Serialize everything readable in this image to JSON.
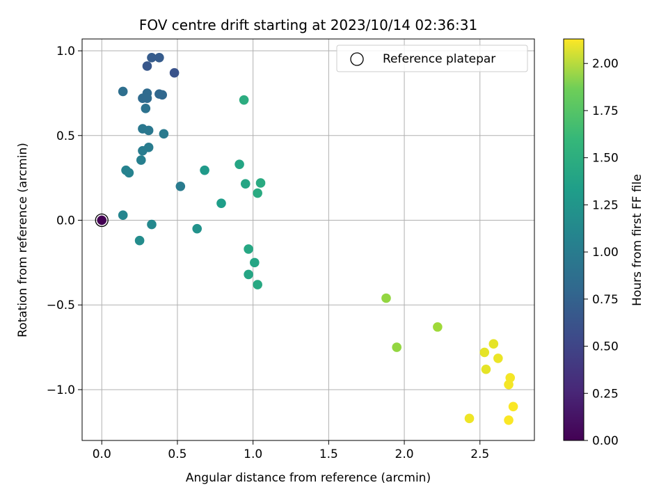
{
  "chart_data": {
    "type": "scatter",
    "title": "FOV centre drift starting at 2023/10/14 02:36:31",
    "xlabel": "Angular distance from reference (arcmin)",
    "ylabel": "Rotation from reference (arcmin)",
    "xlim": [
      -0.13,
      2.86
    ],
    "ylim": [
      -1.3,
      1.07
    ],
    "xticks": [
      0.0,
      0.5,
      1.0,
      1.5,
      2.0,
      2.5
    ],
    "xtick_labels": [
      "0.0",
      "0.5",
      "1.0",
      "1.5",
      "2.0",
      "2.5"
    ],
    "yticks": [
      -1.0,
      -0.5,
      0.0,
      0.5,
      1.0
    ],
    "ytick_labels": [
      "−1.0",
      "−0.5",
      "0.0",
      "0.5",
      "1.0"
    ],
    "grid": true,
    "legend": {
      "placement": "top-right",
      "entries": [
        "Reference platepar"
      ]
    },
    "colorbar": {
      "label": "Hours from first FF file",
      "colormap": "viridis",
      "range": [
        0.0,
        2.13
      ],
      "ticks": [
        0.0,
        0.25,
        0.5,
        0.75,
        1.0,
        1.25,
        1.5,
        1.75,
        2.0
      ],
      "tick_labels": [
        "0.00",
        "0.25",
        "0.50",
        "0.75",
        "1.00",
        "1.25",
        "1.50",
        "1.75",
        "2.00"
      ]
    },
    "reference_point": {
      "x": 0.0,
      "y": 0.0
    },
    "points": [
      {
        "x": 0.0,
        "y": 0.0,
        "c": 0.0
      },
      {
        "x": 0.33,
        "y": 0.96,
        "c": 0.62
      },
      {
        "x": 0.38,
        "y": 0.96,
        "c": 0.62
      },
      {
        "x": 0.3,
        "y": 0.91,
        "c": 0.58
      },
      {
        "x": 0.48,
        "y": 0.87,
        "c": 0.55
      },
      {
        "x": 0.14,
        "y": 0.76,
        "c": 0.77
      },
      {
        "x": 0.3,
        "y": 0.75,
        "c": 0.74
      },
      {
        "x": 0.38,
        "y": 0.745,
        "c": 0.71
      },
      {
        "x": 0.4,
        "y": 0.74,
        "c": 0.71
      },
      {
        "x": 0.27,
        "y": 0.72,
        "c": 0.74
      },
      {
        "x": 0.3,
        "y": 0.72,
        "c": 0.74
      },
      {
        "x": 0.29,
        "y": 0.66,
        "c": 0.8
      },
      {
        "x": 0.27,
        "y": 0.54,
        "c": 0.85
      },
      {
        "x": 0.31,
        "y": 0.53,
        "c": 0.85
      },
      {
        "x": 0.41,
        "y": 0.51,
        "c": 0.87
      },
      {
        "x": 0.31,
        "y": 0.43,
        "c": 0.89
      },
      {
        "x": 0.27,
        "y": 0.41,
        "c": 0.89
      },
      {
        "x": 0.26,
        "y": 0.355,
        "c": 0.92
      },
      {
        "x": 0.16,
        "y": 0.295,
        "c": 0.95
      },
      {
        "x": 0.18,
        "y": 0.28,
        "c": 0.95
      },
      {
        "x": 0.52,
        "y": 0.2,
        "c": 0.88
      },
      {
        "x": 0.14,
        "y": 0.03,
        "c": 0.97
      },
      {
        "x": 0.33,
        "y": -0.025,
        "c": 1.0
      },
      {
        "x": 0.25,
        "y": -0.12,
        "c": 1.03
      },
      {
        "x": 0.63,
        "y": -0.05,
        "c": 1.08
      },
      {
        "x": 0.68,
        "y": 0.295,
        "c": 1.15
      },
      {
        "x": 0.79,
        "y": 0.1,
        "c": 1.18
      },
      {
        "x": 0.94,
        "y": 0.71,
        "c": 1.32
      },
      {
        "x": 0.91,
        "y": 0.33,
        "c": 1.25
      },
      {
        "x": 0.95,
        "y": 0.215,
        "c": 1.25
      },
      {
        "x": 1.05,
        "y": 0.22,
        "c": 1.3
      },
      {
        "x": 1.03,
        "y": 0.16,
        "c": 1.3
      },
      {
        "x": 0.97,
        "y": -0.17,
        "c": 1.27
      },
      {
        "x": 1.01,
        "y": -0.25,
        "c": 1.25
      },
      {
        "x": 0.97,
        "y": -0.32,
        "c": 1.25
      },
      {
        "x": 1.03,
        "y": -0.38,
        "c": 1.28
      },
      {
        "x": 1.88,
        "y": -0.46,
        "c": 1.78
      },
      {
        "x": 1.95,
        "y": -0.75,
        "c": 1.78
      },
      {
        "x": 2.22,
        "y": -0.63,
        "c": 1.82
      },
      {
        "x": 2.53,
        "y": -0.78,
        "c": 2.05
      },
      {
        "x": 2.54,
        "y": -0.88,
        "c": 2.05
      },
      {
        "x": 2.59,
        "y": -0.73,
        "c": 2.05
      },
      {
        "x": 2.62,
        "y": -0.815,
        "c": 2.07
      },
      {
        "x": 2.7,
        "y": -0.93,
        "c": 2.1
      },
      {
        "x": 2.69,
        "y": -0.97,
        "c": 2.1
      },
      {
        "x": 2.43,
        "y": -1.17,
        "c": 2.08
      },
      {
        "x": 2.72,
        "y": -1.1,
        "c": 2.12
      },
      {
        "x": 2.69,
        "y": -1.18,
        "c": 2.12
      }
    ]
  }
}
